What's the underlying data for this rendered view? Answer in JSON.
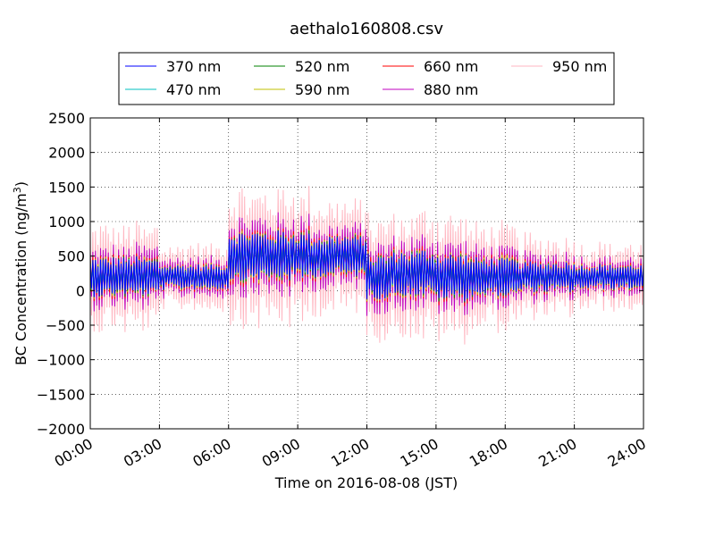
{
  "chart_data": {
    "type": "line",
    "title": "aethalo160808.csv",
    "xlabel": "Time on 2016-08-08 (JST)",
    "ylabel_main": "BC Concentration (ng/m",
    "ylabel_sup": "3",
    "ylabel_close": ")",
    "xlim": [
      "2016-08-08T00:00",
      "2016-08-09T00:00"
    ],
    "ylim": [
      -2000,
      2500
    ],
    "grid": true,
    "legend_position": "top-center",
    "x_ticks": [
      {
        "label": "00:00",
        "hour": 0
      },
      {
        "label": "03:00",
        "hour": 3
      },
      {
        "label": "06:00",
        "hour": 6
      },
      {
        "label": "09:00",
        "hour": 9
      },
      {
        "label": "12:00",
        "hour": 12
      },
      {
        "label": "15:00",
        "hour": 15
      },
      {
        "label": "18:00",
        "hour": 18
      },
      {
        "label": "21:00",
        "hour": 21
      },
      {
        "label": "24:00",
        "hour": 24
      }
    ],
    "y_ticks": [
      {
        "label": "2500",
        "value": 2500
      },
      {
        "label": "2000",
        "value": 2000
      },
      {
        "label": "1500",
        "value": 1500
      },
      {
        "label": "1000",
        "value": 1000
      },
      {
        "label": "500",
        "value": 500
      },
      {
        "label": "0",
        "value": 0
      },
      {
        "label": "−500",
        "value": -500
      },
      {
        "label": "−1000",
        "value": -1000
      },
      {
        "label": "−1500",
        "value": -1500
      },
      {
        "label": "−2000",
        "value": -2000
      }
    ],
    "series": [
      {
        "name": "370 nm",
        "color": "#0000ff"
      },
      {
        "name": "470 nm",
        "color": "#00bfbf"
      },
      {
        "name": "520 nm",
        "color": "#008000"
      },
      {
        "name": "590 nm",
        "color": "#bfbf00"
      },
      {
        "name": "660 nm",
        "color": "#ff0000"
      },
      {
        "name": "880 nm",
        "color": "#bf00bf"
      },
      {
        "name": "950 nm",
        "color": "#ffb6c1"
      }
    ]
  }
}
